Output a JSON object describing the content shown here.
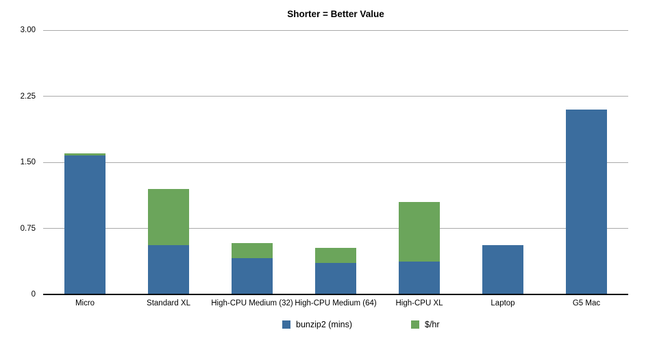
{
  "chart_data": {
    "type": "bar",
    "stacked": true,
    "title": "Shorter = Better Value",
    "categories": [
      "Micro",
      "Standard XL",
      "High-CPU Medium (32)",
      "High-CPU Medium (64)",
      "High-CPU XL",
      "Laptop",
      "G5 Mac"
    ],
    "series": [
      {
        "name": "bunzip2 (mins)",
        "color": "#3b6d9e",
        "values": [
          1.58,
          0.56,
          0.41,
          0.36,
          0.37,
          0.56,
          2.1
        ]
      },
      {
        "name": "$/hr",
        "color": "#6ba55b",
        "values": [
          0.02,
          0.64,
          0.17,
          0.17,
          0.68,
          0,
          0
        ]
      }
    ],
    "y_ticks": [
      {
        "label": "3.00",
        "value": 3.0
      },
      {
        "label": "2.25",
        "value": 2.25
      },
      {
        "label": "1.50",
        "value": 1.5
      },
      {
        "label": "0.75",
        "value": 0.75
      },
      {
        "label": "0",
        "value": 0
      }
    ],
    "ylim": [
      0,
      3.0
    ],
    "xlabel": "",
    "ylabel": "",
    "grid": true,
    "legend_position": "bottom",
    "colors": {
      "background": "#ffffff",
      "gridline": "#a9a9a9",
      "axis": "#000000",
      "text": "#000000"
    }
  }
}
